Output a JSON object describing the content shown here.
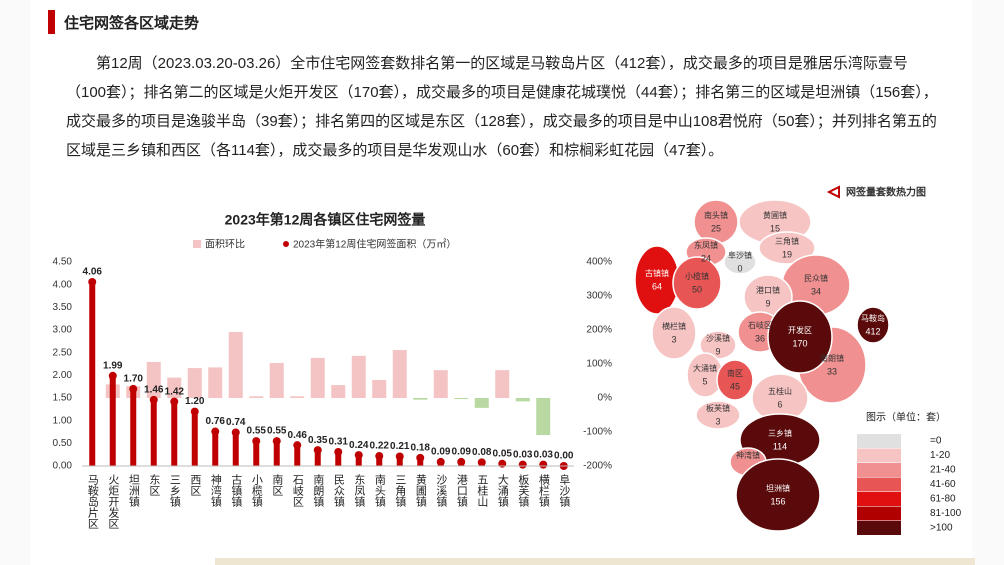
{
  "header": {
    "title": "住宅网签各区域走势"
  },
  "paragraph": "第12周（2023.03.20-03.26）全市住宅网签套数排名第一的区域是马鞍岛片区（412套），成交最多的项目是雅居乐湾际壹号（100套）；排名第二的区域是火炬开发区（170套），成交最多的项目是健康花城璞悦（44套）；排名第三的区域是坦洲镇（156套），成交最多的项目是逸骏半岛（39套）；排名第四的区域是东区（128套），成交最多的项目是中山108君悦府（50套）；并列排名第五的区域是三乡镇和西区（各114套），成交最多的项目是华发观山水（60套）和棕榈彩虹花园（47套）。",
  "chart_data": {
    "type": "bar_lollipop",
    "title": "2023年第12周各镇区住宅网签量",
    "categories": [
      "马鞍岛片区",
      "火炬开发区",
      "坦洲镇",
      "东区",
      "三乡镇",
      "西区",
      "神湾镇",
      "古镇镇",
      "小榄镇",
      "南区",
      "石岐区",
      "南朗镇",
      "民众镇",
      "东凤镇",
      "南头镇",
      "三角镇",
      "黄圃镇",
      "沙溪镇",
      "港口镇",
      "五桂山",
      "大涌镇",
      "板芙镇",
      "横栏镇",
      "阜沙镇"
    ],
    "series": [
      {
        "name": "面积环比",
        "color": "#f4c4c4",
        "negative_color": "#b8d9a2",
        "axis": "y2",
        "values": [
          null,
          40,
          35,
          106,
          60,
          88,
          90,
          194,
          5,
          103,
          5,
          118,
          38,
          124,
          53,
          141,
          -5,
          82,
          -3,
          -29,
          82,
          -10,
          -109,
          null
        ]
      },
      {
        "name": "2023年第12周住宅网签面积（万㎡）",
        "color": "#c00000",
        "axis": "y",
        "values": [
          4.06,
          1.99,
          1.7,
          1.46,
          1.42,
          1.2,
          0.76,
          0.74,
          0.55,
          0.55,
          0.46,
          0.35,
          0.31,
          0.24,
          0.22,
          0.21,
          0.18,
          0.09,
          0.09,
          0.08,
          0.05,
          0.03,
          0.03,
          0
        ],
        "value_labels": [
          "4.06",
          "1.99",
          "1.70",
          "1.46",
          "1.42",
          "1.20",
          "0.76",
          "0.74",
          "0.55",
          "0.55",
          "0.46",
          "0.35",
          "0.31",
          "0.24",
          "0.22",
          "0.21",
          "0.18",
          "0.09",
          "0.09",
          "0.08",
          "0.05",
          "0.03",
          "0.03",
          "0.00"
        ]
      }
    ],
    "ylim": [
      0,
      4.5
    ],
    "yticks": [
      {
        "value": 0,
        "label": "0.00"
      },
      {
        "value": 0.5,
        "label": "0.50"
      },
      {
        "value": 1,
        "label": "1.00"
      },
      {
        "value": 1.5,
        "label": "1.50"
      },
      {
        "value": 2,
        "label": "2.00"
      },
      {
        "value": 2.5,
        "label": "2.50"
      },
      {
        "value": 3,
        "label": "3.00"
      },
      {
        "value": 3.5,
        "label": "3.50"
      },
      {
        "value": 4,
        "label": "4.00"
      },
      {
        "value": 4.5,
        "label": "4.50"
      }
    ],
    "y2lim": [
      -200,
      400
    ],
    "y2ticks": [
      {
        "value": -200,
        "label": "-200%"
      },
      {
        "value": -100,
        "label": "-100%"
      },
      {
        "value": 0,
        "label": "0%"
      },
      {
        "value": 100,
        "label": "100%"
      },
      {
        "value": 200,
        "label": "200%"
      },
      {
        "value": 300,
        "label": "300%"
      },
      {
        "value": 400,
        "label": "400%"
      }
    ]
  },
  "map": {
    "title": "网签量套数热力图",
    "legend_title": "图示（单位：套）",
    "legend": [
      {
        "label": "=0",
        "color": "#e0e0e0"
      },
      {
        "label": "1-20",
        "color": "#f7c4c4"
      },
      {
        "label": "21-40",
        "color": "#f09090"
      },
      {
        "label": "41-60",
        "color": "#e85555"
      },
      {
        "label": "61-80",
        "color": "#e01010"
      },
      {
        "label": "81-100",
        "color": "#b00000"
      },
      {
        "label": ">100",
        "color": "#5a0a0a"
      }
    ],
    "regions": [
      {
        "name": "黄圃镇",
        "value": 15,
        "color": "#f7c4c4"
      },
      {
        "name": "南头镇",
        "value": 25,
        "color": "#f09090"
      },
      {
        "name": "三角镇",
        "value": 19,
        "color": "#f7c4c4"
      },
      {
        "name": "东凤镇",
        "value": 24,
        "color": "#f09090"
      },
      {
        "name": "阜沙镇",
        "value": 0,
        "color": "#e0e0e0"
      },
      {
        "name": "古镇镇",
        "value": 64,
        "color": "#e01010"
      },
      {
        "name": "小榄镇",
        "value": 50,
        "color": "#e85555"
      },
      {
        "name": "民众镇",
        "value": 34,
        "color": "#f09090"
      },
      {
        "name": "港口镇",
        "value": 9,
        "color": "#f7c4c4"
      },
      {
        "name": "南朗镇",
        "value": 33,
        "color": "#f09090"
      },
      {
        "name": "横栏镇",
        "value": 3,
        "color": "#f7c4c4"
      },
      {
        "name": "沙溪镇",
        "value": 9,
        "color": "#f7c4c4"
      },
      {
        "name": "石岐区",
        "value": 36,
        "color": "#f09090"
      },
      {
        "name": "开发区",
        "value": 170,
        "color": "#5a0a0a"
      },
      {
        "name": "马鞍岛",
        "value": 412,
        "color": "#5a0a0a"
      },
      {
        "name": "大涌镇",
        "value": 5,
        "color": "#f7c4c4"
      },
      {
        "name": "南区",
        "value": 45,
        "color": "#e85555"
      },
      {
        "name": "五桂山",
        "value": 6,
        "color": "#f7c4c4"
      },
      {
        "name": "板芙镇",
        "value": 3,
        "color": "#f7c4c4"
      },
      {
        "name": "三乡镇",
        "value": 114,
        "color": "#5a0a0a"
      },
      {
        "name": "神湾镇",
        "color": "#f09090"
      },
      {
        "name": "坦洲镇",
        "value": 156,
        "color": "#5a0a0a"
      }
    ]
  }
}
